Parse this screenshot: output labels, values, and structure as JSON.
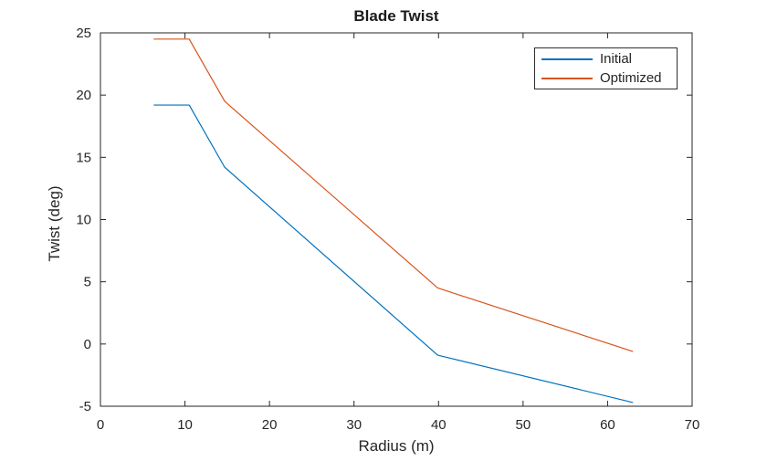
{
  "chart_data": {
    "type": "line",
    "title": "Blade Twist",
    "xlabel": "Radius (m)",
    "ylabel": "Twist (deg)",
    "xlim": [
      0,
      70
    ],
    "ylim": [
      -5,
      25
    ],
    "xticks": [
      0,
      10,
      20,
      30,
      40,
      50,
      60,
      70
    ],
    "yticks": [
      -5,
      0,
      5,
      10,
      15,
      20,
      25
    ],
    "grid": false,
    "legend_position": "upper-right",
    "axis_color": "#262626",
    "background": "#FFFFFF",
    "x": [
      6.3,
      10.5,
      14.7,
      39.9,
      63
    ],
    "series": [
      {
        "name": "Initial",
        "color": "#0072BD",
        "values": [
          19.2,
          19.2,
          14.2,
          -0.9,
          -4.7
        ]
      },
      {
        "name": "Optimized",
        "color": "#D95319",
        "values": [
          24.5,
          24.5,
          19.5,
          4.5,
          -0.6
        ]
      }
    ]
  }
}
